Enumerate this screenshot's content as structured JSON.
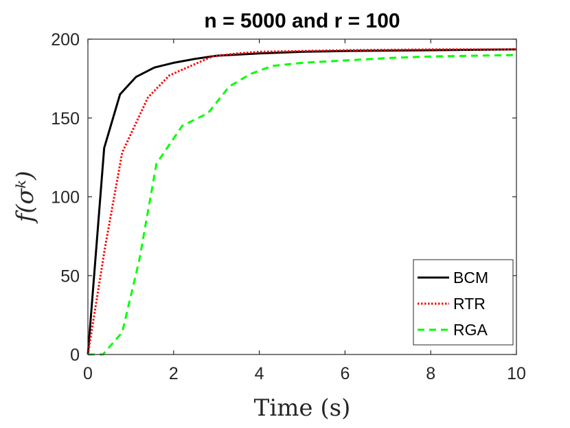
{
  "chart_data": {
    "type": "line",
    "title": "n = 5000 and r = 100",
    "xlabel": "Time (s)",
    "ylabel": "f(σᵏ)",
    "xlim": [
      0,
      10
    ],
    "ylim": [
      0,
      200
    ],
    "xticks": [
      0,
      2,
      4,
      6,
      8,
      10
    ],
    "yticks": [
      0,
      50,
      100,
      150,
      200
    ],
    "grid": false,
    "legend_position": "bottom-right",
    "series": [
      {
        "name": "BCM",
        "color": "#000000",
        "style": "solid",
        "x": [
          0,
          0.38,
          0.75,
          1.12,
          1.55,
          2.0,
          2.5,
          3.0,
          4.0,
          5.0,
          6.0,
          8.0,
          10.0
        ],
        "y": [
          0,
          131,
          165,
          176,
          182,
          185,
          187.5,
          189.5,
          191,
          192,
          192.5,
          193,
          193.5
        ]
      },
      {
        "name": "RTR",
        "color": "#ff0000",
        "style": "dotted",
        "x": [
          0,
          0.4,
          0.8,
          1.4,
          1.9,
          2.4,
          2.9,
          3.5,
          4.0,
          5.0,
          6.0,
          8.0,
          10.0
        ],
        "y": [
          0,
          68,
          128,
          163,
          177,
          183,
          189,
          191,
          192,
          192.5,
          193,
          193.5,
          193.5
        ]
      },
      {
        "name": "RGA",
        "color": "#00ff00",
        "style": "dashed",
        "x": [
          0,
          0.35,
          0.8,
          1.2,
          1.6,
          2.2,
          2.8,
          3.3,
          3.8,
          4.3,
          5.0,
          6.0,
          7.0,
          8.0,
          9.0,
          10.0
        ],
        "y": [
          0,
          0,
          14,
          60,
          121,
          145,
          153,
          170,
          178,
          183,
          185,
          186.5,
          188,
          189,
          189.5,
          190
        ]
      }
    ]
  }
}
